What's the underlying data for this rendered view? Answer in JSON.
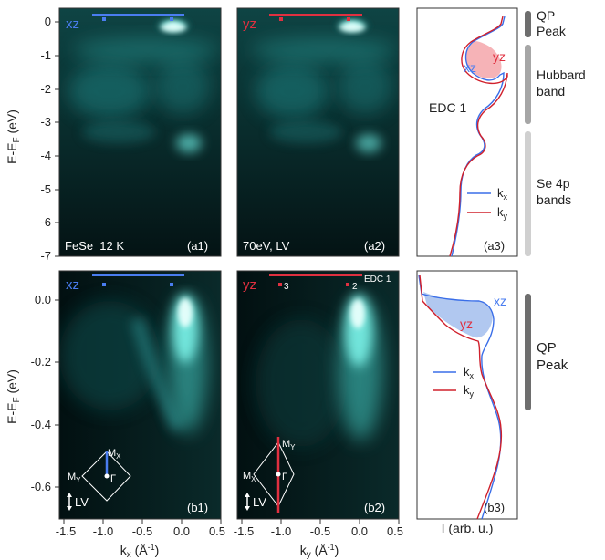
{
  "colors": {
    "xz_blue": "#4a7df0",
    "yz_red": "#e03040",
    "cyan_bright": "#b8fff8",
    "map_bg": "#041214",
    "fill_red": "#f4a6aa",
    "fill_blue": "#a8c2ee",
    "bracket_qp": "#6e6e6e",
    "bracket_hubbard": "#a6a6a6",
    "bracket_se": "#d0d0d0"
  },
  "axes": {
    "top_ylabel": "E-E_F (eV)",
    "top_yticks": [
      "0",
      "-1",
      "-2",
      "-3",
      "-4",
      "-5",
      "-6",
      "-7"
    ],
    "bottom_ylabel": "E-E_F (eV)",
    "bottom_yticks": [
      "0.0",
      "-0.2",
      "-0.4",
      "-0.6"
    ],
    "xticks": [
      "-1.5",
      "-1.0",
      "-0.5",
      "0.0",
      "0.5"
    ],
    "xlabel_left": "k_x (Å⁻¹)",
    "xlabel_right": "k_y (Å⁻¹)",
    "edc_xlabel": "I (arb. u.)"
  },
  "panels": {
    "a1": {
      "pol": "xz",
      "label": "(a1)",
      "note": "FeSe  12 K"
    },
    "a2": {
      "pol": "yz",
      "label": "(a2)",
      "note": "70eV, LV"
    },
    "a3": {
      "label": "(a3)",
      "edc_label": "EDC 1",
      "curve_xz": "xz",
      "curve_yz": "yz",
      "legend": [
        "k_x",
        "k_y"
      ]
    },
    "b1": {
      "pol": "xz",
      "label": "(b1)",
      "lv": "LV",
      "bz_m1": "M_X",
      "bz_m2": "M_Y",
      "bz_g": "Γ"
    },
    "b2": {
      "pol": "yz",
      "label": "(b2)",
      "lv": "LV",
      "bz_m1": "M_Y",
      "bz_m2": "M_X",
      "bz_g": "Γ",
      "edc_tag": "EDC 1",
      "cut3": "3",
      "cut2": "2"
    },
    "b3": {
      "label": "(b3)",
      "curve_xz": "xz",
      "curve_yz": "yz",
      "legend": [
        "k_x",
        "k_y"
      ]
    }
  },
  "brackets": {
    "top": [
      {
        "label_line1": "QP",
        "label_line2": "Peak"
      },
      {
        "label_line1": "Hubbard",
        "label_line2": "band"
      },
      {
        "label_line1": "Se 4p",
        "label_line2": "bands"
      }
    ],
    "bottom": [
      {
        "label_line1": "QP",
        "label_line2": "Peak"
      }
    ]
  }
}
